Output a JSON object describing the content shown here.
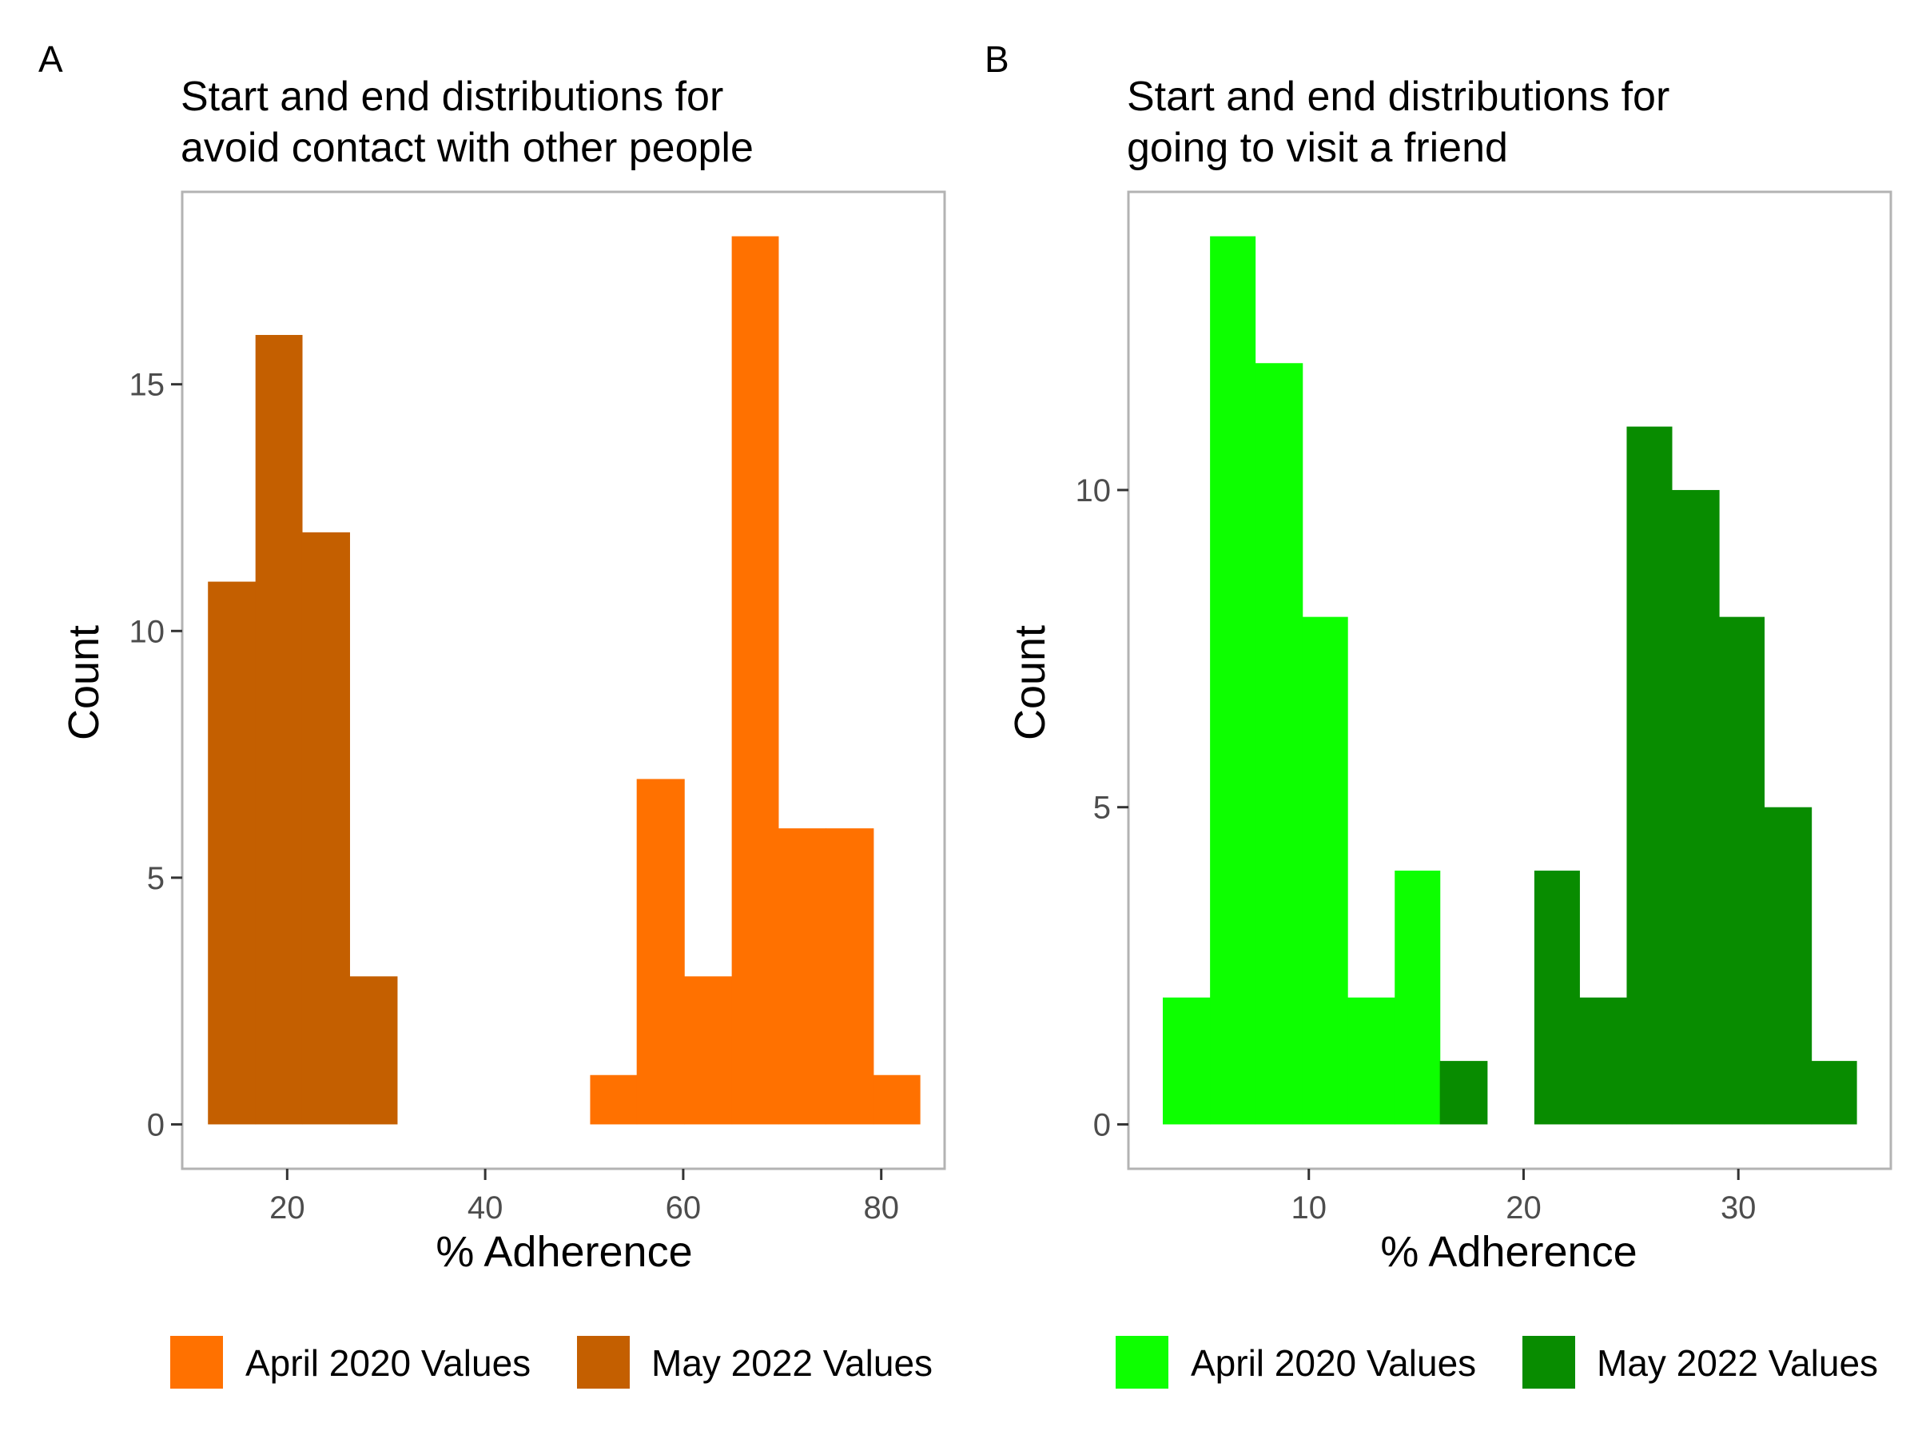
{
  "chart_data": [
    {
      "panel_label": "A",
      "type": "bar",
      "title_lines": [
        "Start and end distributions for",
        "avoid contact with other people"
      ],
      "xlabel": "% Adherence",
      "ylabel": "Count",
      "xlim": [
        9.4,
        86.4
      ],
      "ylim": [
        -0.9,
        18.9
      ],
      "x_ticks": [
        20,
        40,
        60,
        80
      ],
      "y_ticks": [
        0,
        5,
        10,
        15
      ],
      "grid": false,
      "legend_position": "bottom",
      "series": [
        {
          "name": "April 2020 Values",
          "color": "#ff7100",
          "bins": [
            {
              "x0": 50.6,
              "x1": 55.3,
              "count": 1
            },
            {
              "x0": 55.3,
              "x1": 60.1,
              "count": 7
            },
            {
              "x0": 60.1,
              "x1": 64.9,
              "count": 3
            },
            {
              "x0": 64.9,
              "x1": 69.6,
              "count": 18
            },
            {
              "x0": 69.6,
              "x1": 74.4,
              "count": 6
            },
            {
              "x0": 74.4,
              "x1": 79.2,
              "count": 6
            },
            {
              "x0": 79.2,
              "x1": 83.9,
              "count": 1
            }
          ]
        },
        {
          "name": "May 2022 Values",
          "color": "#c45f00",
          "bins": [
            {
              "x0": 12.0,
              "x1": 16.8,
              "count": 11
            },
            {
              "x0": 16.8,
              "x1": 21.5,
              "count": 16
            },
            {
              "x0": 21.5,
              "x1": 26.3,
              "count": 12
            },
            {
              "x0": 26.3,
              "x1": 31.1,
              "count": 3
            }
          ]
        }
      ]
    },
    {
      "panel_label": "B",
      "type": "bar",
      "title_lines": [
        "Start and end distributions for",
        "going to visit a friend"
      ],
      "xlabel": "% Adherence",
      "ylabel": "Count",
      "xlim": [
        1.6,
        37.1
      ],
      "ylim": [
        -0.7,
        14.7
      ],
      "x_ticks": [
        10,
        20,
        30
      ],
      "y_ticks": [
        0,
        5,
        10
      ],
      "grid": false,
      "legend_position": "bottom",
      "series": [
        {
          "name": "April 2020 Values",
          "color": "#0dff00",
          "bins": [
            {
              "x0": 3.2,
              "x1": 5.4,
              "count": 2
            },
            {
              "x0": 5.4,
              "x1": 7.5,
              "count": 14
            },
            {
              "x0": 7.5,
              "x1": 9.7,
              "count": 12
            },
            {
              "x0": 9.7,
              "x1": 11.8,
              "count": 8
            },
            {
              "x0": 11.8,
              "x1": 14.0,
              "count": 2
            },
            {
              "x0": 14.0,
              "x1": 16.1,
              "count": 4
            }
          ]
        },
        {
          "name": "May 2022 Values",
          "color": "#088c00",
          "bins": [
            {
              "x0": 16.1,
              "x1": 18.3,
              "count": 1
            },
            {
              "x0": 20.5,
              "x1": 22.6,
              "count": 4
            },
            {
              "x0": 22.6,
              "x1": 24.8,
              "count": 2
            },
            {
              "x0": 24.8,
              "x1": 26.9,
              "count": 11
            },
            {
              "x0": 26.9,
              "x1": 29.1,
              "count": 10
            },
            {
              "x0": 29.1,
              "x1": 31.2,
              "count": 8
            },
            {
              "x0": 31.2,
              "x1": 33.4,
              "count": 5
            },
            {
              "x0": 33.4,
              "x1": 35.5,
              "count": 1
            }
          ]
        }
      ]
    }
  ]
}
